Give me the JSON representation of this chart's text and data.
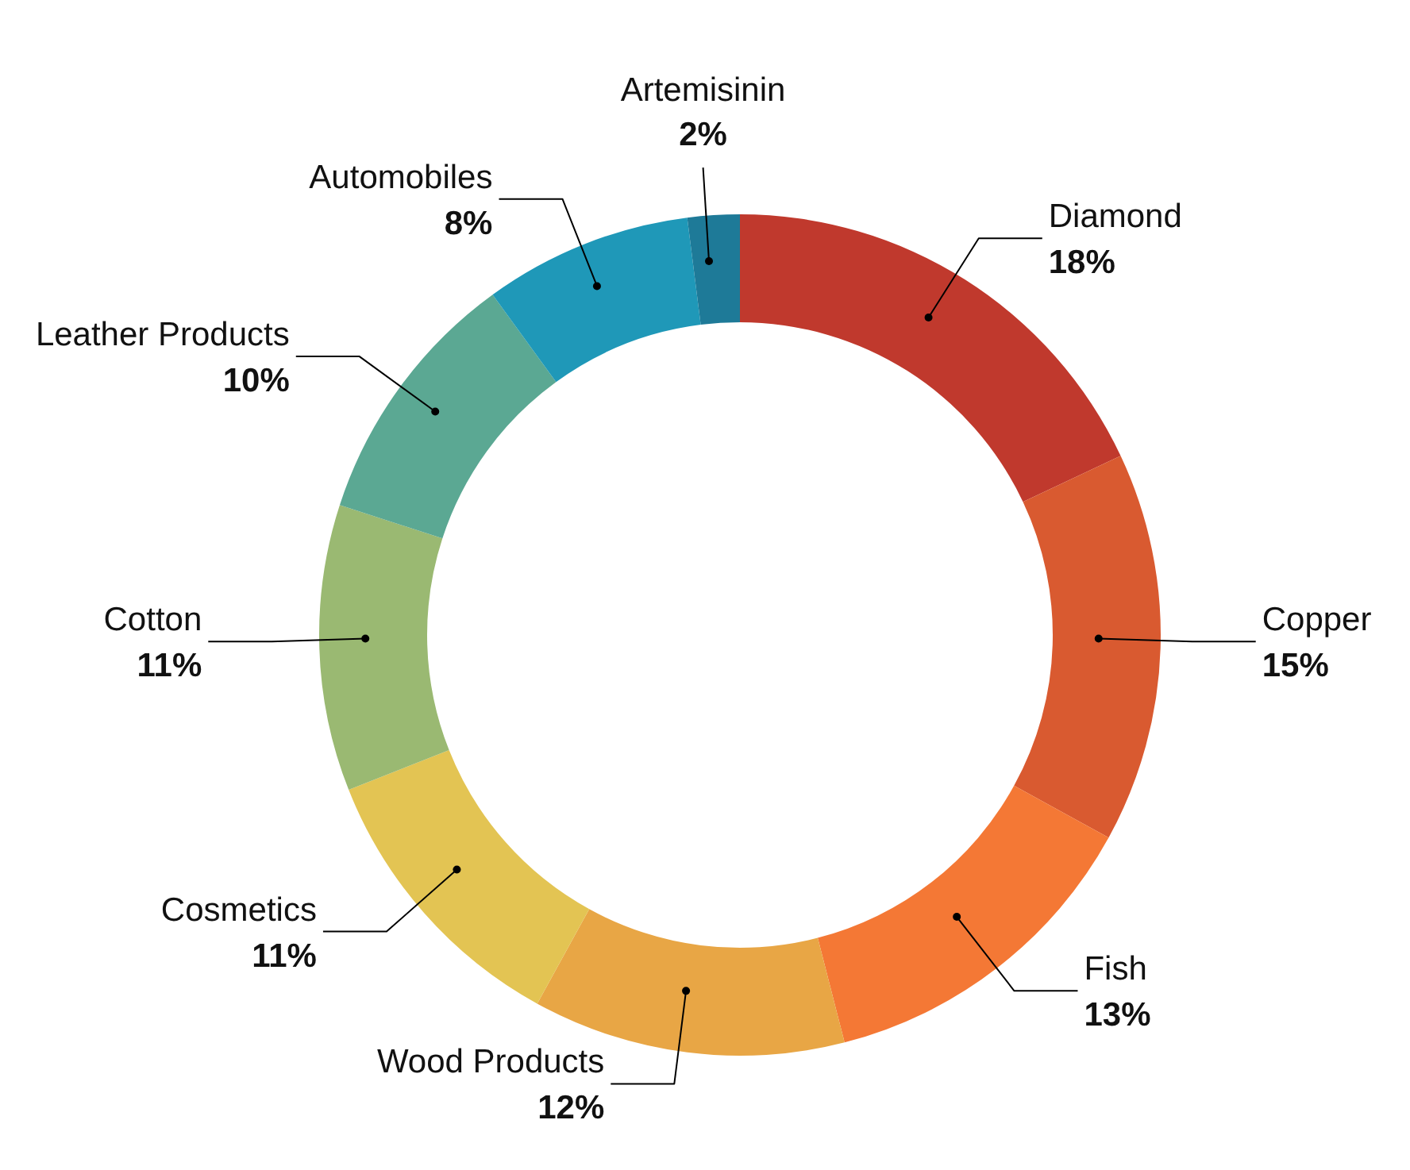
{
  "chart_data": {
    "type": "donut",
    "categories": [
      "Diamond",
      "Copper",
      "Fish",
      "Wood Products",
      "Cosmetics",
      "Cotton",
      "Leather Products",
      "Automobiles",
      "Artemisinin"
    ],
    "values": [
      18,
      15,
      13,
      12,
      11,
      11,
      10,
      8,
      2
    ],
    "value_labels": [
      "18%",
      "15%",
      "13%",
      "12%",
      "11%",
      "11%",
      "10%",
      "8%",
      "2%"
    ],
    "colors": [
      "#c0392d",
      "#d95a30",
      "#f47835",
      "#e8a645",
      "#e3c453",
      "#9ab972",
      "#5ba893",
      "#1f98b8",
      "#1e7a98"
    ]
  }
}
